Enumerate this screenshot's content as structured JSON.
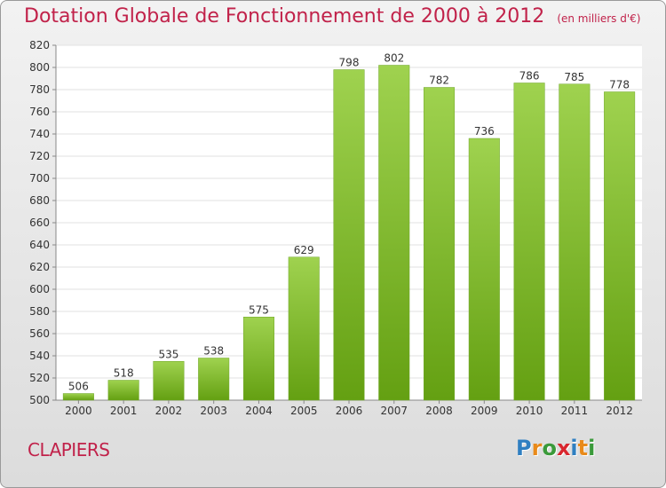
{
  "title": "Dotation Globale de Fonctionnement de 2000 à 2012",
  "unit": "(en milliers d'€)",
  "place": "CLAPIERS",
  "logo": {
    "letters": [
      "P",
      "r",
      "o",
      "x",
      "i",
      "t",
      "i"
    ],
    "colors": [
      "#2f7fc1",
      "#e98a1a",
      "#3a9a3a",
      "#d9262e",
      "#2f7fc1",
      "#e98a1a",
      "#3a9a3a"
    ]
  },
  "chart_data": {
    "type": "bar",
    "categories": [
      "2000",
      "2001",
      "2002",
      "2003",
      "2004",
      "2005",
      "2006",
      "2007",
      "2008",
      "2009",
      "2010",
      "2011",
      "2012"
    ],
    "values": [
      506,
      518,
      535,
      538,
      575,
      629,
      798,
      802,
      782,
      736,
      786,
      785,
      778
    ],
    "ylim": [
      500,
      820
    ],
    "yticks": [
      500,
      520,
      540,
      560,
      580,
      600,
      620,
      640,
      660,
      680,
      700,
      720,
      740,
      760,
      780,
      800,
      820
    ],
    "grid": true,
    "bar_color": "#8cc63f"
  }
}
